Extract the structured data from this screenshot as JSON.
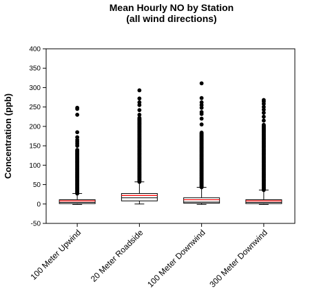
{
  "chart_data": {
    "type": "box",
    "title": "Mean Hourly NO by Station",
    "subtitle": "(all wind directions)",
    "ylabel": "Concentration (ppb)",
    "xlabel": "",
    "ylim": [
      -50,
      400
    ],
    "yticks": [
      "-50",
      "0",
      "50",
      "100",
      "150",
      "200",
      "250",
      "300",
      "350",
      "400"
    ],
    "ytick_values": [
      -50,
      0,
      50,
      100,
      150,
      200,
      250,
      300,
      350,
      400
    ],
    "grid": false,
    "colors": {
      "box_fill": "#ffffff",
      "box_stroke": "#000000",
      "mean_line": "#ff0000",
      "outlier": "#000000"
    },
    "categories": [
      "100 Meter Upwind",
      "20 Meter Roadside",
      "100 Meter Downwind",
      "300 Meter Downwind"
    ],
    "boxes": [
      {
        "whisker_low": -1,
        "q1": 1,
        "median": 4,
        "mean": 8,
        "q3": 11,
        "whisker_high": 27,
        "outliers": {
          "dense_from": 27,
          "dense_to": 140,
          "sparse": [
            150,
            155,
            160,
            165,
            172,
            185,
            230,
            245,
            248
          ]
        }
      },
      {
        "whisker_low": 0,
        "q1": 8,
        "median": 16,
        "mean": 22,
        "q3": 27,
        "whisker_high": 57,
        "outliers": {
          "dense_from": 57,
          "dense_to": 222,
          "sparse": [
            230,
            242,
            255,
            262,
            272,
            293
          ]
        }
      },
      {
        "whisker_low": -1,
        "q1": 2,
        "median": 5,
        "mean": 11,
        "q3": 16,
        "whisker_high": 43,
        "outliers": {
          "dense_from": 43,
          "dense_to": 185,
          "sparse": [
            205,
            220,
            232,
            237,
            248,
            255,
            262,
            273,
            311
          ]
        }
      },
      {
        "whisker_low": -1,
        "q1": 1,
        "median": 4,
        "mean": 8,
        "q3": 11,
        "whisker_high": 36,
        "outliers": {
          "dense_from": 36,
          "dense_to": 205,
          "sparse": [
            215,
            225,
            235,
            243,
            250,
            258,
            264,
            268
          ]
        }
      }
    ]
  }
}
